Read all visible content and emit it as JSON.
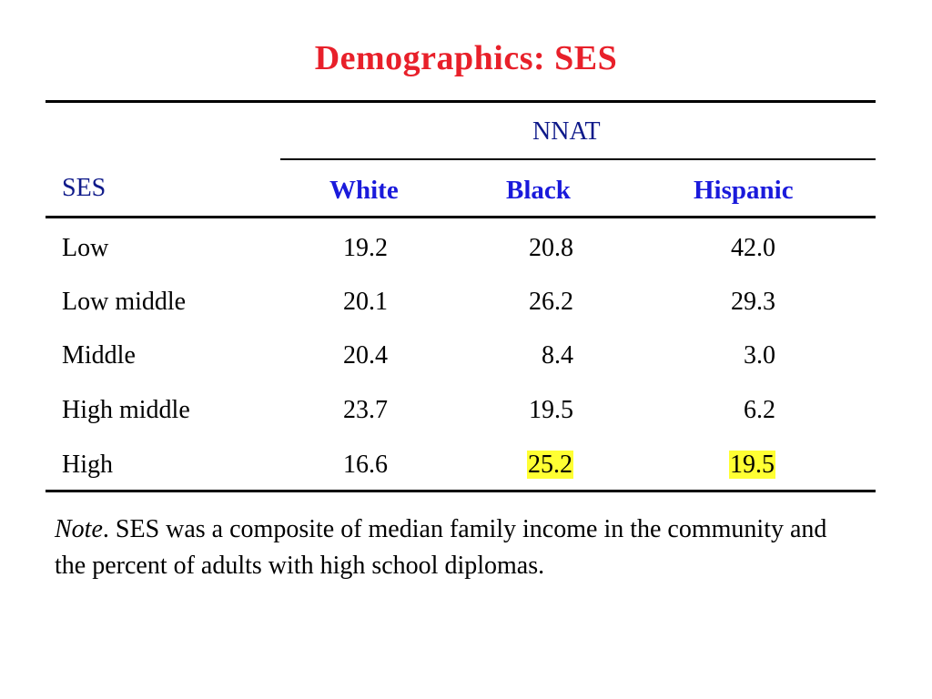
{
  "title": "Demographics: SES",
  "table": {
    "group_header": "NNAT",
    "row_header": "SES",
    "columns": [
      "White",
      "Black",
      "Hispanic"
    ],
    "rows": [
      {
        "label": "Low",
        "values": [
          "19.2",
          "20.8",
          "42.0"
        ]
      },
      {
        "label": "Low middle",
        "values": [
          "20.1",
          "26.2",
          "29.3"
        ]
      },
      {
        "label": "Middle",
        "values": [
          "20.4",
          "8.4",
          "3.0"
        ]
      },
      {
        "label": "High middle",
        "values": [
          "23.7",
          "19.5",
          "6.2"
        ]
      },
      {
        "label": "High",
        "values": [
          "16.6",
          "25.2",
          "19.5"
        ]
      }
    ],
    "highlight_color": "#ffff33",
    "highlighted_cells": [
      "High/Black",
      "High/Hispanic"
    ]
  },
  "note": {
    "label": "Note",
    "text": ". SES was a composite of median family income in the community and the percent of adults with high school diplomas."
  },
  "colors": {
    "title": "#e8202a",
    "header_blue": "#1a1adb",
    "header_navy": "#0f1a8a"
  }
}
